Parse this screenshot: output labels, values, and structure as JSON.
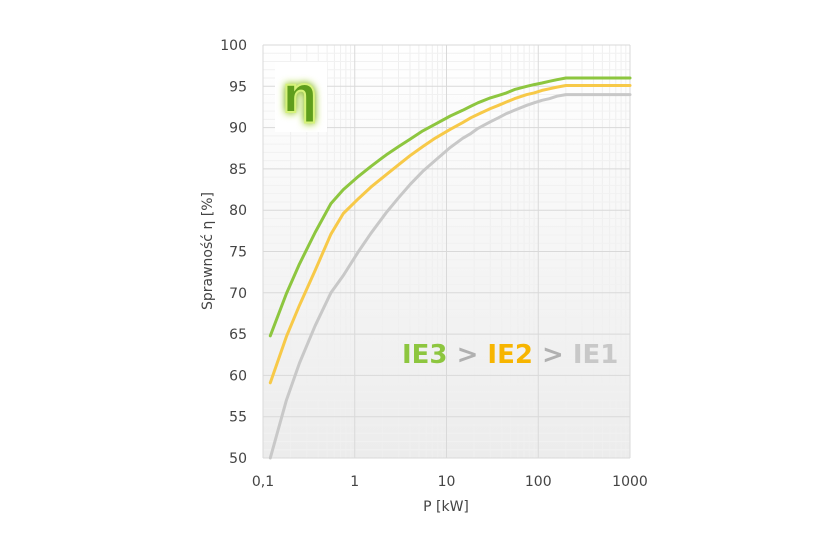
{
  "chart_data": {
    "type": "line",
    "xlabel": "P [kW]",
    "ylabel": "Sprawność η [%]",
    "x_scale": "log",
    "xlim": [
      0.1,
      1000
    ],
    "ylim": [
      50,
      100
    ],
    "x_tick_labels": [
      "0,1",
      "1",
      "10",
      "100",
      "1000"
    ],
    "x_tick_values": [
      0.1,
      1,
      10,
      100,
      1000
    ],
    "y_ticks": [
      50,
      55,
      60,
      65,
      70,
      75,
      80,
      85,
      90,
      95,
      100
    ],
    "grid": true,
    "symbol": "η",
    "annotation": {
      "parts": [
        "IE3",
        " > ",
        "IE2",
        " > ",
        "IE1"
      ],
      "colors": [
        "#8dc63f",
        "#b0b0b0",
        "#f7b500",
        "#b0b0b0",
        "#c8c8c8"
      ]
    },
    "series": [
      {
        "name": "IE3",
        "color": "#8dc63f",
        "x": [
          0.12,
          0.18,
          0.25,
          0.37,
          0.55,
          0.75,
          1.1,
          1.5,
          2.2,
          3,
          4,
          5.5,
          7.5,
          11,
          15,
          18.5,
          22,
          30,
          37,
          45,
          55,
          75,
          90,
          110,
          132,
          160,
          200,
          1000
        ],
        "y": [
          64.8,
          69.9,
          73.5,
          77.3,
          80.8,
          82.5,
          84.1,
          85.3,
          86.7,
          87.7,
          88.6,
          89.6,
          90.4,
          91.4,
          92.1,
          92.6,
          93.0,
          93.6,
          93.9,
          94.2,
          94.6,
          95.0,
          95.2,
          95.4,
          95.6,
          95.8,
          96.0,
          96.0
        ]
      },
      {
        "name": "IE2",
        "color": "#f7c948",
        "x": [
          0.12,
          0.18,
          0.25,
          0.37,
          0.55,
          0.75,
          1.1,
          1.5,
          2.2,
          3,
          4,
          5.5,
          7.5,
          11,
          15,
          18.5,
          22,
          30,
          37,
          45,
          55,
          75,
          90,
          110,
          132,
          160,
          200,
          1000
        ],
        "y": [
          59.1,
          64.7,
          68.5,
          72.7,
          77.1,
          79.6,
          81.4,
          82.8,
          84.3,
          85.5,
          86.6,
          87.7,
          88.7,
          89.8,
          90.6,
          91.2,
          91.6,
          92.3,
          92.7,
          93.1,
          93.5,
          94.0,
          94.2,
          94.5,
          94.7,
          94.9,
          95.1,
          95.1
        ]
      },
      {
        "name": "IE1",
        "color": "#c8c8c8",
        "x": [
          0.12,
          0.18,
          0.25,
          0.37,
          0.55,
          0.75,
          1.1,
          1.5,
          2.2,
          3,
          4,
          5.5,
          7.5,
          11,
          15,
          18.5,
          22,
          30,
          37,
          45,
          55,
          75,
          90,
          110,
          132,
          160,
          200,
          1000
        ],
        "y": [
          50.0,
          57.0,
          61.5,
          66.0,
          70.0,
          72.1,
          75.0,
          77.2,
          79.7,
          81.5,
          83.1,
          84.7,
          86.0,
          87.6,
          88.7,
          89.3,
          89.9,
          90.7,
          91.2,
          91.7,
          92.1,
          92.7,
          93.0,
          93.3,
          93.5,
          93.8,
          94.0,
          94.0
        ]
      }
    ]
  }
}
